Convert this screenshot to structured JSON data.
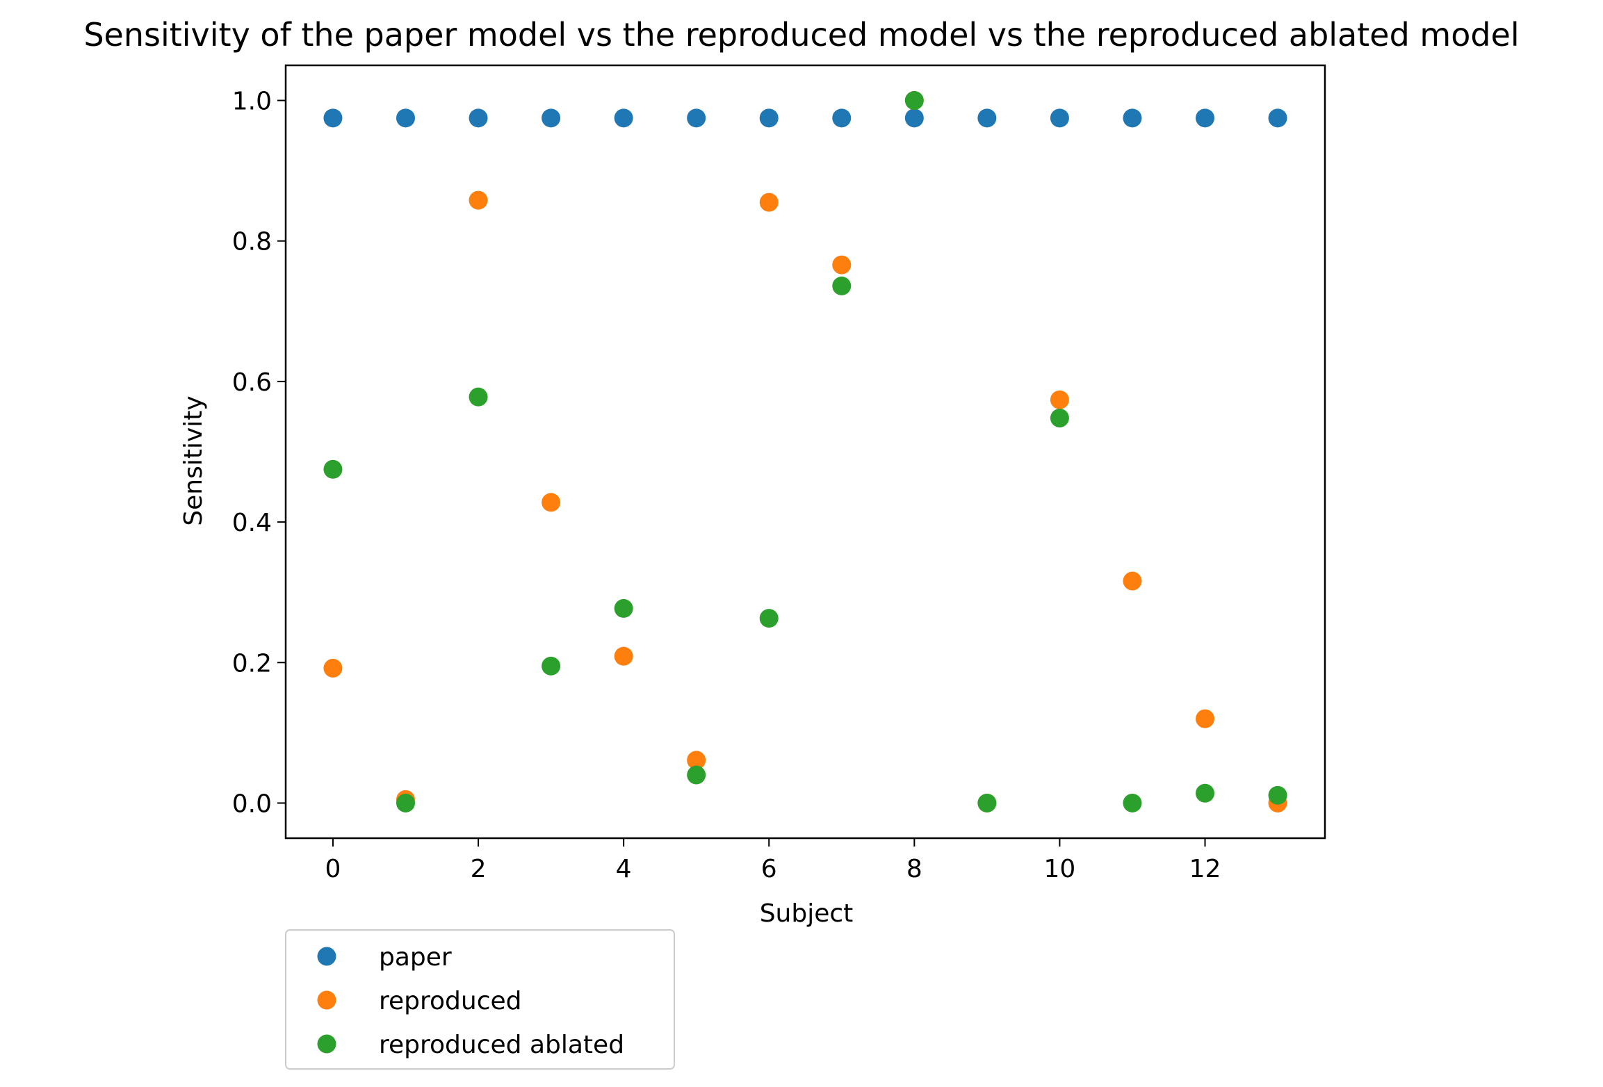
{
  "chart_data": {
    "type": "scatter",
    "title": "Sensitivity of the paper model vs the reproduced model vs the reproduced ablated model",
    "xlabel": "Subject",
    "ylabel": "Sensitivity",
    "xlim": [
      -0.65,
      13.65
    ],
    "ylim": [
      -0.05,
      1.05
    ],
    "xticks": [
      0,
      2,
      4,
      6,
      8,
      10,
      12
    ],
    "xtick_labels": [
      "0",
      "2",
      "4",
      "6",
      "8",
      "10",
      "12"
    ],
    "yticks": [
      0.0,
      0.2,
      0.4,
      0.6,
      0.8,
      1.0
    ],
    "ytick_labels": [
      "0.0",
      "0.2",
      "0.4",
      "0.6",
      "0.8",
      "1.0"
    ],
    "grid": false,
    "legend_position": "below-left",
    "x": [
      0,
      1,
      2,
      3,
      4,
      5,
      6,
      7,
      8,
      9,
      10,
      11,
      12,
      13
    ],
    "series": [
      {
        "name": "paper",
        "color": "#1f77b4",
        "values": [
          0.975,
          0.975,
          0.975,
          0.975,
          0.975,
          0.975,
          0.975,
          0.975,
          0.975,
          0.975,
          0.975,
          0.975,
          0.975,
          0.975
        ]
      },
      {
        "name": "reproduced",
        "color": "#ff7f0e",
        "values": [
          0.192,
          0.005,
          0.858,
          0.428,
          0.209,
          0.061,
          0.855,
          0.766,
          1.0,
          0.0,
          0.574,
          0.316,
          0.12,
          0.0
        ]
      },
      {
        "name": "reproduced ablated",
        "color": "#2ca02c",
        "values": [
          0.475,
          0.0,
          0.578,
          0.195,
          0.277,
          0.04,
          0.263,
          0.736,
          1.0,
          0.0,
          0.548,
          0.0,
          0.014,
          0.011
        ]
      }
    ]
  }
}
